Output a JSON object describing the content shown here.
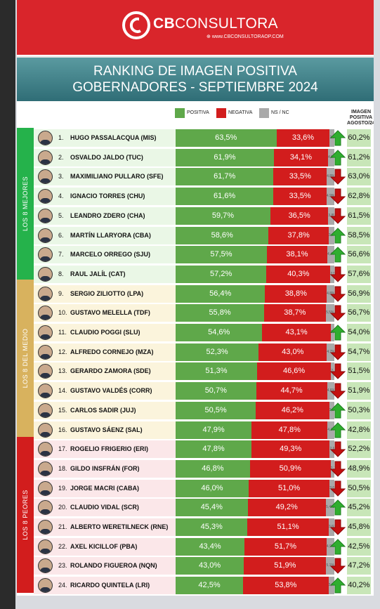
{
  "header": {
    "logo_text_bold": "CB",
    "logo_text": "CONSULTORA",
    "logo_url": "www.CBCONSULTORAOP.COM",
    "title_line1": "RANKING DE IMAGEN POSITIVA",
    "title_line2": "GOBERNADORES - SEPTIEMBRE 2024"
  },
  "colors": {
    "positive": "#5fa84a",
    "negative": "#d21d1d",
    "nsnc": "#a9a9a9",
    "brand_red": "#d9252b",
    "best_group": "#25b24b",
    "middle_group": "#d8b25e",
    "worst_group": "#d21d1d"
  },
  "chart_data": {
    "type": "bar",
    "stacked": true,
    "title": "RANKING DE IMAGEN POSITIVA GOBERNADORES - SEPTIEMBRE 2024",
    "legend": [
      "POSITIVA",
      "NEGATIVA",
      "NS / NC"
    ],
    "legend_placement": "top",
    "extra_column_header": "IMAGEN POSITIVA AGOSTO/24",
    "groups": [
      {
        "label": "LOS 8 MEJORES",
        "from": 1,
        "to": 8
      },
      {
        "label": "LOS 8 DEL MEDIO",
        "from": 9,
        "to": 16
      },
      {
        "label": "LOS 8 PEORES",
        "from": 17,
        "to": 24
      }
    ],
    "rows": [
      {
        "rank": "1.",
        "name": "HUGO PASSALACQUA (MIS)",
        "positive": 63.5,
        "positive_label": "63,5%",
        "negative": 33.6,
        "negative_label": "33,6%",
        "nsnc": 2.9,
        "nsnc_label": "2,9%",
        "trend": "up",
        "previous": 60.2,
        "previous_label": "60,2%"
      },
      {
        "rank": "2.",
        "name": "OSVALDO JALDO (TUC)",
        "positive": 61.9,
        "positive_label": "61,9%",
        "negative": 34.1,
        "negative_label": "34,1%",
        "nsnc": 4.0,
        "nsnc_label": "4,0%",
        "trend": "up",
        "previous": 61.2,
        "previous_label": "61,2%"
      },
      {
        "rank": "3.",
        "name": "MAXIMILIANO PULLARO (SFE)",
        "positive": 61.7,
        "positive_label": "61,7%",
        "negative": 33.5,
        "negative_label": "33,5%",
        "nsnc": 4.8,
        "nsnc_label": "4,8%",
        "trend": "down",
        "previous": 63.0,
        "previous_label": "63,0%"
      },
      {
        "rank": "4.",
        "name": "IGNACIO TORRES (CHU)",
        "positive": 61.6,
        "positive_label": "61,6%",
        "negative": 33.5,
        "negative_label": "33,5%",
        "nsnc": 4.9,
        "nsnc_label": "4,9%",
        "trend": "down",
        "previous": 62.8,
        "previous_label": "62,8%"
      },
      {
        "rank": "5.",
        "name": "LEANDRO ZDERO (CHA)",
        "positive": 59.7,
        "positive_label": "59,7%",
        "negative": 36.5,
        "negative_label": "36,5%",
        "nsnc": 3.8,
        "nsnc_label": "3,8%",
        "trend": "down",
        "previous": 61.5,
        "previous_label": "61,5%"
      },
      {
        "rank": "6.",
        "name": "MARTÍN LLARYORA (CBA)",
        "positive": 58.6,
        "positive_label": "58,6%",
        "negative": 37.8,
        "negative_label": "37,8%",
        "nsnc": 3.6,
        "nsnc_label": "3,6%",
        "trend": "up",
        "previous": 58.5,
        "previous_label": "58,5%"
      },
      {
        "rank": "7.",
        "name": "MARCELO ORREGO (SJU)",
        "positive": 57.5,
        "positive_label": "57,5%",
        "negative": 38.1,
        "negative_label": "38,1%",
        "nsnc": 4.4,
        "nsnc_label": "4,4%",
        "trend": "up",
        "previous": 56.6,
        "previous_label": "56,6%"
      },
      {
        "rank": "8.",
        "name": "RAUL JALÍL (CAT)",
        "positive": 57.2,
        "positive_label": "57,2%",
        "negative": 40.3,
        "negative_label": "40,3%",
        "nsnc": 2.5,
        "nsnc_label": "2,5%",
        "trend": "down",
        "previous": 57.6,
        "previous_label": "57,6%"
      },
      {
        "rank": "9.",
        "name": "SERGIO ZILIOTTO (LPA)",
        "positive": 56.4,
        "positive_label": "56,4%",
        "negative": 38.8,
        "negative_label": "38,8%",
        "nsnc": 4.8,
        "nsnc_label": "4,8%",
        "trend": "down",
        "previous": 56.9,
        "previous_label": "56,9%"
      },
      {
        "rank": "10.",
        "name": "GUSTAVO MELELLA (TDF)",
        "positive": 55.8,
        "positive_label": "55,8%",
        "negative": 38.7,
        "negative_label": "38,7%",
        "nsnc": 5.5,
        "nsnc_label": "5,5%",
        "trend": "down",
        "previous": 56.7,
        "previous_label": "56,7%"
      },
      {
        "rank": "11.",
        "name": "CLAUDIO POGGI (SLU)",
        "positive": 54.6,
        "positive_label": "54,6%",
        "negative": 43.1,
        "negative_label": "43,1%",
        "nsnc": 2.3,
        "nsnc_label": "2,3%",
        "trend": "up",
        "previous": 54.0,
        "previous_label": "54,0%"
      },
      {
        "rank": "12.",
        "name": "ALFREDO CORNEJO (MZA)",
        "positive": 52.3,
        "positive_label": "52,3%",
        "negative": 43.0,
        "negative_label": "43,0%",
        "nsnc": 4.7,
        "nsnc_label": "4,7%",
        "trend": "down",
        "previous": 54.7,
        "previous_label": "54,7%"
      },
      {
        "rank": "13.",
        "name": "GERARDO ZAMORA (SDE)",
        "positive": 51.3,
        "positive_label": "51,3%",
        "negative": 46.6,
        "negative_label": "46,6%",
        "nsnc": 2.1,
        "nsnc_label": "2,1%",
        "trend": "down",
        "previous": 51.5,
        "previous_label": "51,5%"
      },
      {
        "rank": "14.",
        "name": "GUSTAVO VALDÉS (CORR)",
        "positive": 50.7,
        "positive_label": "50,7%",
        "negative": 44.7,
        "negative_label": "44,7%",
        "nsnc": 4.6,
        "nsnc_label": "4,6%",
        "trend": "down",
        "previous": 51.9,
        "previous_label": "51,9%"
      },
      {
        "rank": "15.",
        "name": "CARLOS SADIR (JUJ)",
        "positive": 50.5,
        "positive_label": "50,5%",
        "negative": 46.2,
        "negative_label": "46,2%",
        "nsnc": 3.3,
        "nsnc_label": "3,3%",
        "trend": "up",
        "previous": 50.3,
        "previous_label": "50,3%"
      },
      {
        "rank": "16.",
        "name": "GUSTAVO SÁENZ (SAL)",
        "positive": 47.9,
        "positive_label": "47,9%",
        "negative": 47.8,
        "negative_label": "47,8%",
        "nsnc": 4.3,
        "nsnc_label": "4,3%",
        "trend": "up",
        "previous": 42.8,
        "previous_label": "42,8%"
      },
      {
        "rank": "17.",
        "name": "ROGELIO FRIGERIO (ERI)",
        "positive": 47.8,
        "positive_label": "47,8%",
        "negative": 49.3,
        "negative_label": "49,3%",
        "nsnc": 2.9,
        "nsnc_label": "2,9%",
        "trend": "down",
        "previous": 52.2,
        "previous_label": "52,2%"
      },
      {
        "rank": "18.",
        "name": "GILDO INSFRÁN (FOR)",
        "positive": 46.8,
        "positive_label": "46,8%",
        "negative": 50.9,
        "negative_label": "50,9%",
        "nsnc": 2.3,
        "nsnc_label": "2,3%",
        "trend": "down",
        "previous": 48.9,
        "previous_label": "48,9%"
      },
      {
        "rank": "19.",
        "name": "JORGE MACRI (CABA)",
        "positive": 46.0,
        "positive_label": "46,0%",
        "negative": 51.0,
        "negative_label": "51,0%",
        "nsnc": 3.0,
        "nsnc_label": "3,0%",
        "trend": "down",
        "previous": 50.5,
        "previous_label": "50,5%"
      },
      {
        "rank": "20.",
        "name": "CLAUDIO VIDAL (SCR)",
        "positive": 45.4,
        "positive_label": "45,4%",
        "negative": 49.2,
        "negative_label": "49,2%",
        "nsnc": 5.4,
        "nsnc_label": "5,4%",
        "trend": "up",
        "previous": 45.2,
        "previous_label": "45,2%"
      },
      {
        "rank": "21.",
        "name": "ALBERTO WERETILNECK (RNE)",
        "positive": 45.3,
        "positive_label": "45,3%",
        "negative": 51.1,
        "negative_label": "51,1%",
        "nsnc": 3.6,
        "nsnc_label": "3,6%",
        "trend": "down",
        "previous": 45.8,
        "previous_label": "45,8%"
      },
      {
        "rank": "22.",
        "name": "AXEL KICILLOF (PBA)",
        "positive": 43.4,
        "positive_label": "43,4%",
        "negative": 51.7,
        "negative_label": "51,7%",
        "nsnc": 4.9,
        "nsnc_label": "4,9%",
        "trend": "up",
        "previous": 42.5,
        "previous_label": "42,5%"
      },
      {
        "rank": "23.",
        "name": "ROLANDO FIGUEROA (NQN)",
        "positive": 43.0,
        "positive_label": "43,0%",
        "negative": 51.9,
        "negative_label": "51,9%",
        "nsnc": 5.1,
        "nsnc_label": "5,1%",
        "trend": "down",
        "previous": 47.2,
        "previous_label": "47,2%"
      },
      {
        "rank": "24.",
        "name": "RICARDO QUINTELA (LRI)",
        "positive": 42.5,
        "positive_label": "42,5%",
        "negative": 53.8,
        "negative_label": "53,8%",
        "nsnc": 3.7,
        "nsnc_label": "3,7%",
        "trend": "up",
        "previous": 40.2,
        "previous_label": "40,2%"
      }
    ]
  }
}
